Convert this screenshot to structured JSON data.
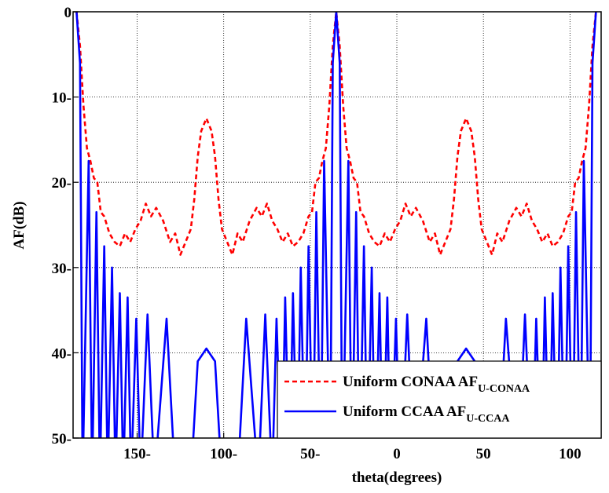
{
  "chart_data": {
    "type": "line",
    "xlabel": "theta(degrees)",
    "ylabel": "AF(dB)",
    "xlim": [
      -187,
      118
    ],
    "ylim": [
      0,
      50
    ],
    "y_inverted": true,
    "grid": true,
    "legend": "lower right",
    "xticks": [
      {
        "value": -150,
        "label": "150-"
      },
      {
        "value": -100,
        "label": "100-"
      },
      {
        "value": -50,
        "label": "50-"
      },
      0,
      50,
      100
    ],
    "yticks": [
      0,
      {
        "value": 10,
        "label": "10-"
      },
      {
        "value": 20,
        "label": "20-"
      },
      {
        "value": 30,
        "label": "30-"
      },
      {
        "value": 40,
        "label": "40-"
      },
      {
        "value": 50,
        "label": "50-"
      }
    ],
    "series": [
      {
        "name": "Uniform CONAA AF",
        "subscript": "U-CONAA",
        "color": "#ff0000",
        "dashed": true,
        "x": [
          -185,
          -183,
          -181,
          -179,
          -177,
          -175,
          -173,
          -171,
          -169,
          -166,
          -163,
          -160,
          -157,
          -154,
          -151,
          -148,
          -145,
          -142,
          -139,
          -135,
          -131,
          -128,
          -125,
          -122,
          -119,
          -117,
          -115,
          -113,
          -110,
          -107,
          -105,
          -103,
          -101,
          -98,
          -95,
          -92,
          -89,
          -85,
          -81,
          -78,
          -75,
          -72,
          -69,
          -66,
          -63,
          -60,
          -57,
          -54,
          -51,
          -49,
          -47,
          -45,
          -43,
          -41,
          -39,
          -37,
          -35,
          -33,
          -31,
          -29,
          -27,
          -25,
          -23,
          -21,
          -19,
          -16,
          -13,
          -10,
          -7,
          -4,
          -1,
          2,
          5,
          8,
          11,
          15,
          19,
          22,
          25,
          28,
          31,
          33,
          35,
          37,
          40,
          43,
          45,
          47,
          49,
          52,
          55,
          58,
          61,
          65,
          69,
          72,
          75,
          78,
          81,
          84,
          87,
          90,
          93,
          96,
          99,
          101,
          103,
          105,
          107,
          109,
          111,
          113,
          115
        ],
        "values": [
          0,
          4,
          11,
          16,
          17.5,
          19.5,
          20,
          23.5,
          24,
          26,
          27,
          27.5,
          26,
          27,
          25.5,
          24.5,
          22.5,
          24,
          23,
          24.5,
          27,
          26,
          28.5,
          27,
          25.5,
          22,
          17,
          14,
          12.5,
          14,
          17,
          22,
          25.5,
          27,
          28.5,
          26,
          27,
          24.5,
          23,
          24,
          22.5,
          24.5,
          25.5,
          27,
          26,
          27.5,
          27,
          26,
          24,
          23.5,
          20,
          19.5,
          17.5,
          16,
          11,
          4,
          0,
          4,
          11,
          16,
          17.5,
          19.5,
          20,
          23.5,
          24,
          26,
          27,
          27.5,
          26,
          27,
          25.5,
          24.5,
          22.5,
          24,
          23,
          24.5,
          27,
          26,
          28.5,
          27,
          25.5,
          22,
          17,
          14,
          12.5,
          14,
          17,
          22,
          25.5,
          27,
          28.5,
          26,
          27,
          24.5,
          23,
          24,
          22.5,
          24.5,
          25.5,
          27,
          26,
          27.5,
          27,
          26,
          24,
          23.5,
          20,
          19.5,
          17.5,
          16,
          11,
          4,
          0
        ]
      },
      {
        "name": "Uniform CCAA AF",
        "subscript": "U-CCAA",
        "color": "#0000ff",
        "dashed": false,
        "x": [
          -185,
          -183,
          -181.5,
          -178,
          -176,
          -173.5,
          -171.5,
          -169,
          -167,
          -164.5,
          -162.5,
          -160,
          -158,
          -155.5,
          -153.5,
          -150.5,
          -148,
          -144,
          -140,
          -133,
          -128,
          -119,
          -115,
          -110,
          -105,
          -101,
          -92,
          -87,
          -80,
          -76,
          -72,
          -69.5,
          -66.5,
          -64.5,
          -62,
          -60,
          -57.5,
          -55.5,
          -53,
          -51,
          -48.5,
          -46.5,
          -44,
          -42,
          -38.5,
          -37,
          -35,
          -33,
          -31.5,
          -28,
          -26,
          -23.5,
          -21.5,
          -19,
          -17,
          -14.5,
          -12.5,
          -10,
          -8,
          -5.5,
          -3.5,
          -0.5,
          2,
          6,
          10,
          17,
          22,
          31,
          35,
          40,
          45,
          49,
          58,
          63,
          70,
          74,
          78,
          80.5,
          83.5,
          85.5,
          88,
          90,
          92.5,
          94.5,
          97,
          99,
          101.5,
          103.5,
          106,
          108,
          111.5,
          113,
          115
        ],
        "values": [
          0,
          6,
          55,
          17.5,
          55,
          23.5,
          55,
          27.5,
          55,
          30,
          55,
          33,
          55,
          33.5,
          55,
          36,
          55,
          35.5,
          55,
          36,
          55,
          55,
          41,
          39.5,
          41,
          55,
          55,
          36,
          55,
          35.5,
          55,
          36,
          55,
          33.5,
          55,
          33,
          55,
          30,
          55,
          27.5,
          55,
          23.5,
          55,
          17.5,
          55,
          6,
          0,
          6,
          55,
          17.5,
          55,
          23.5,
          55,
          27.5,
          55,
          30,
          55,
          33,
          55,
          33.5,
          55,
          36,
          55,
          35.5,
          55,
          36,
          55,
          55,
          41,
          39.5,
          41,
          55,
          55,
          36,
          55,
          35.5,
          55,
          36,
          55,
          33.5,
          55,
          33,
          55,
          30,
          55,
          27.5,
          55,
          23.5,
          55,
          17.5,
          55,
          6,
          0
        ]
      }
    ]
  }
}
